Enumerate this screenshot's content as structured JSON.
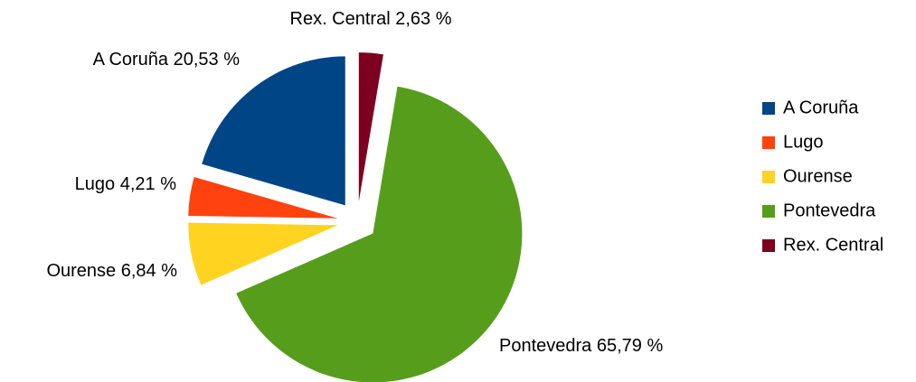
{
  "chart_data": {
    "type": "pie",
    "categories": [
      "A Coruña",
      "Lugo",
      "Ourense",
      "Pontevedra",
      "Rex. Central"
    ],
    "values": [
      20.53,
      4.21,
      6.84,
      65.79,
      2.63
    ],
    "value_labels": [
      "20,53 %",
      "4,21 %",
      "6,84 %",
      "65,79 %",
      "2,63 %"
    ],
    "colors": [
      "#004586",
      "#ff420e",
      "#ffd320",
      "#579d1c",
      "#7e0021"
    ],
    "legend": "right"
  }
}
